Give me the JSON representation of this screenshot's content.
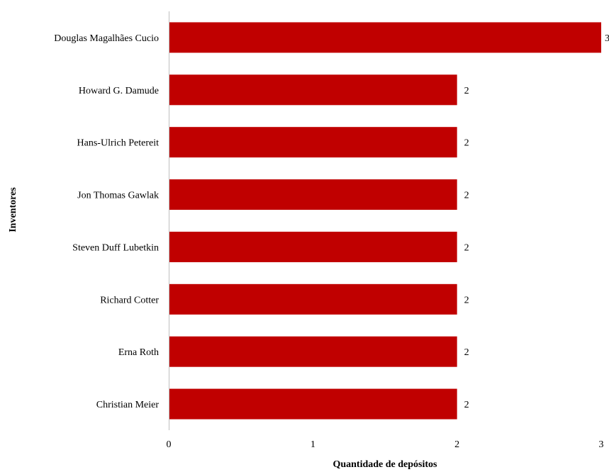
{
  "chart_data": {
    "type": "bar",
    "orientation": "horizontal",
    "categories": [
      "Douglas Magalhães Cucio",
      "Howard G. Damude",
      "Hans-Ulrich Petereit",
      "Jon Thomas Gawlak",
      "Steven Duff Lubetkin",
      "Richard Cotter",
      "Erna Roth",
      "Christian Meier"
    ],
    "values": [
      3,
      2,
      2,
      2,
      2,
      2,
      2,
      2
    ],
    "xlabel": "Quantidade de depósitos",
    "ylabel": "Inventores",
    "xlim": [
      0,
      3
    ],
    "xticks": [
      0,
      1,
      2,
      3
    ],
    "grid": false,
    "data_labels": true,
    "bar_color": "#C00000"
  }
}
